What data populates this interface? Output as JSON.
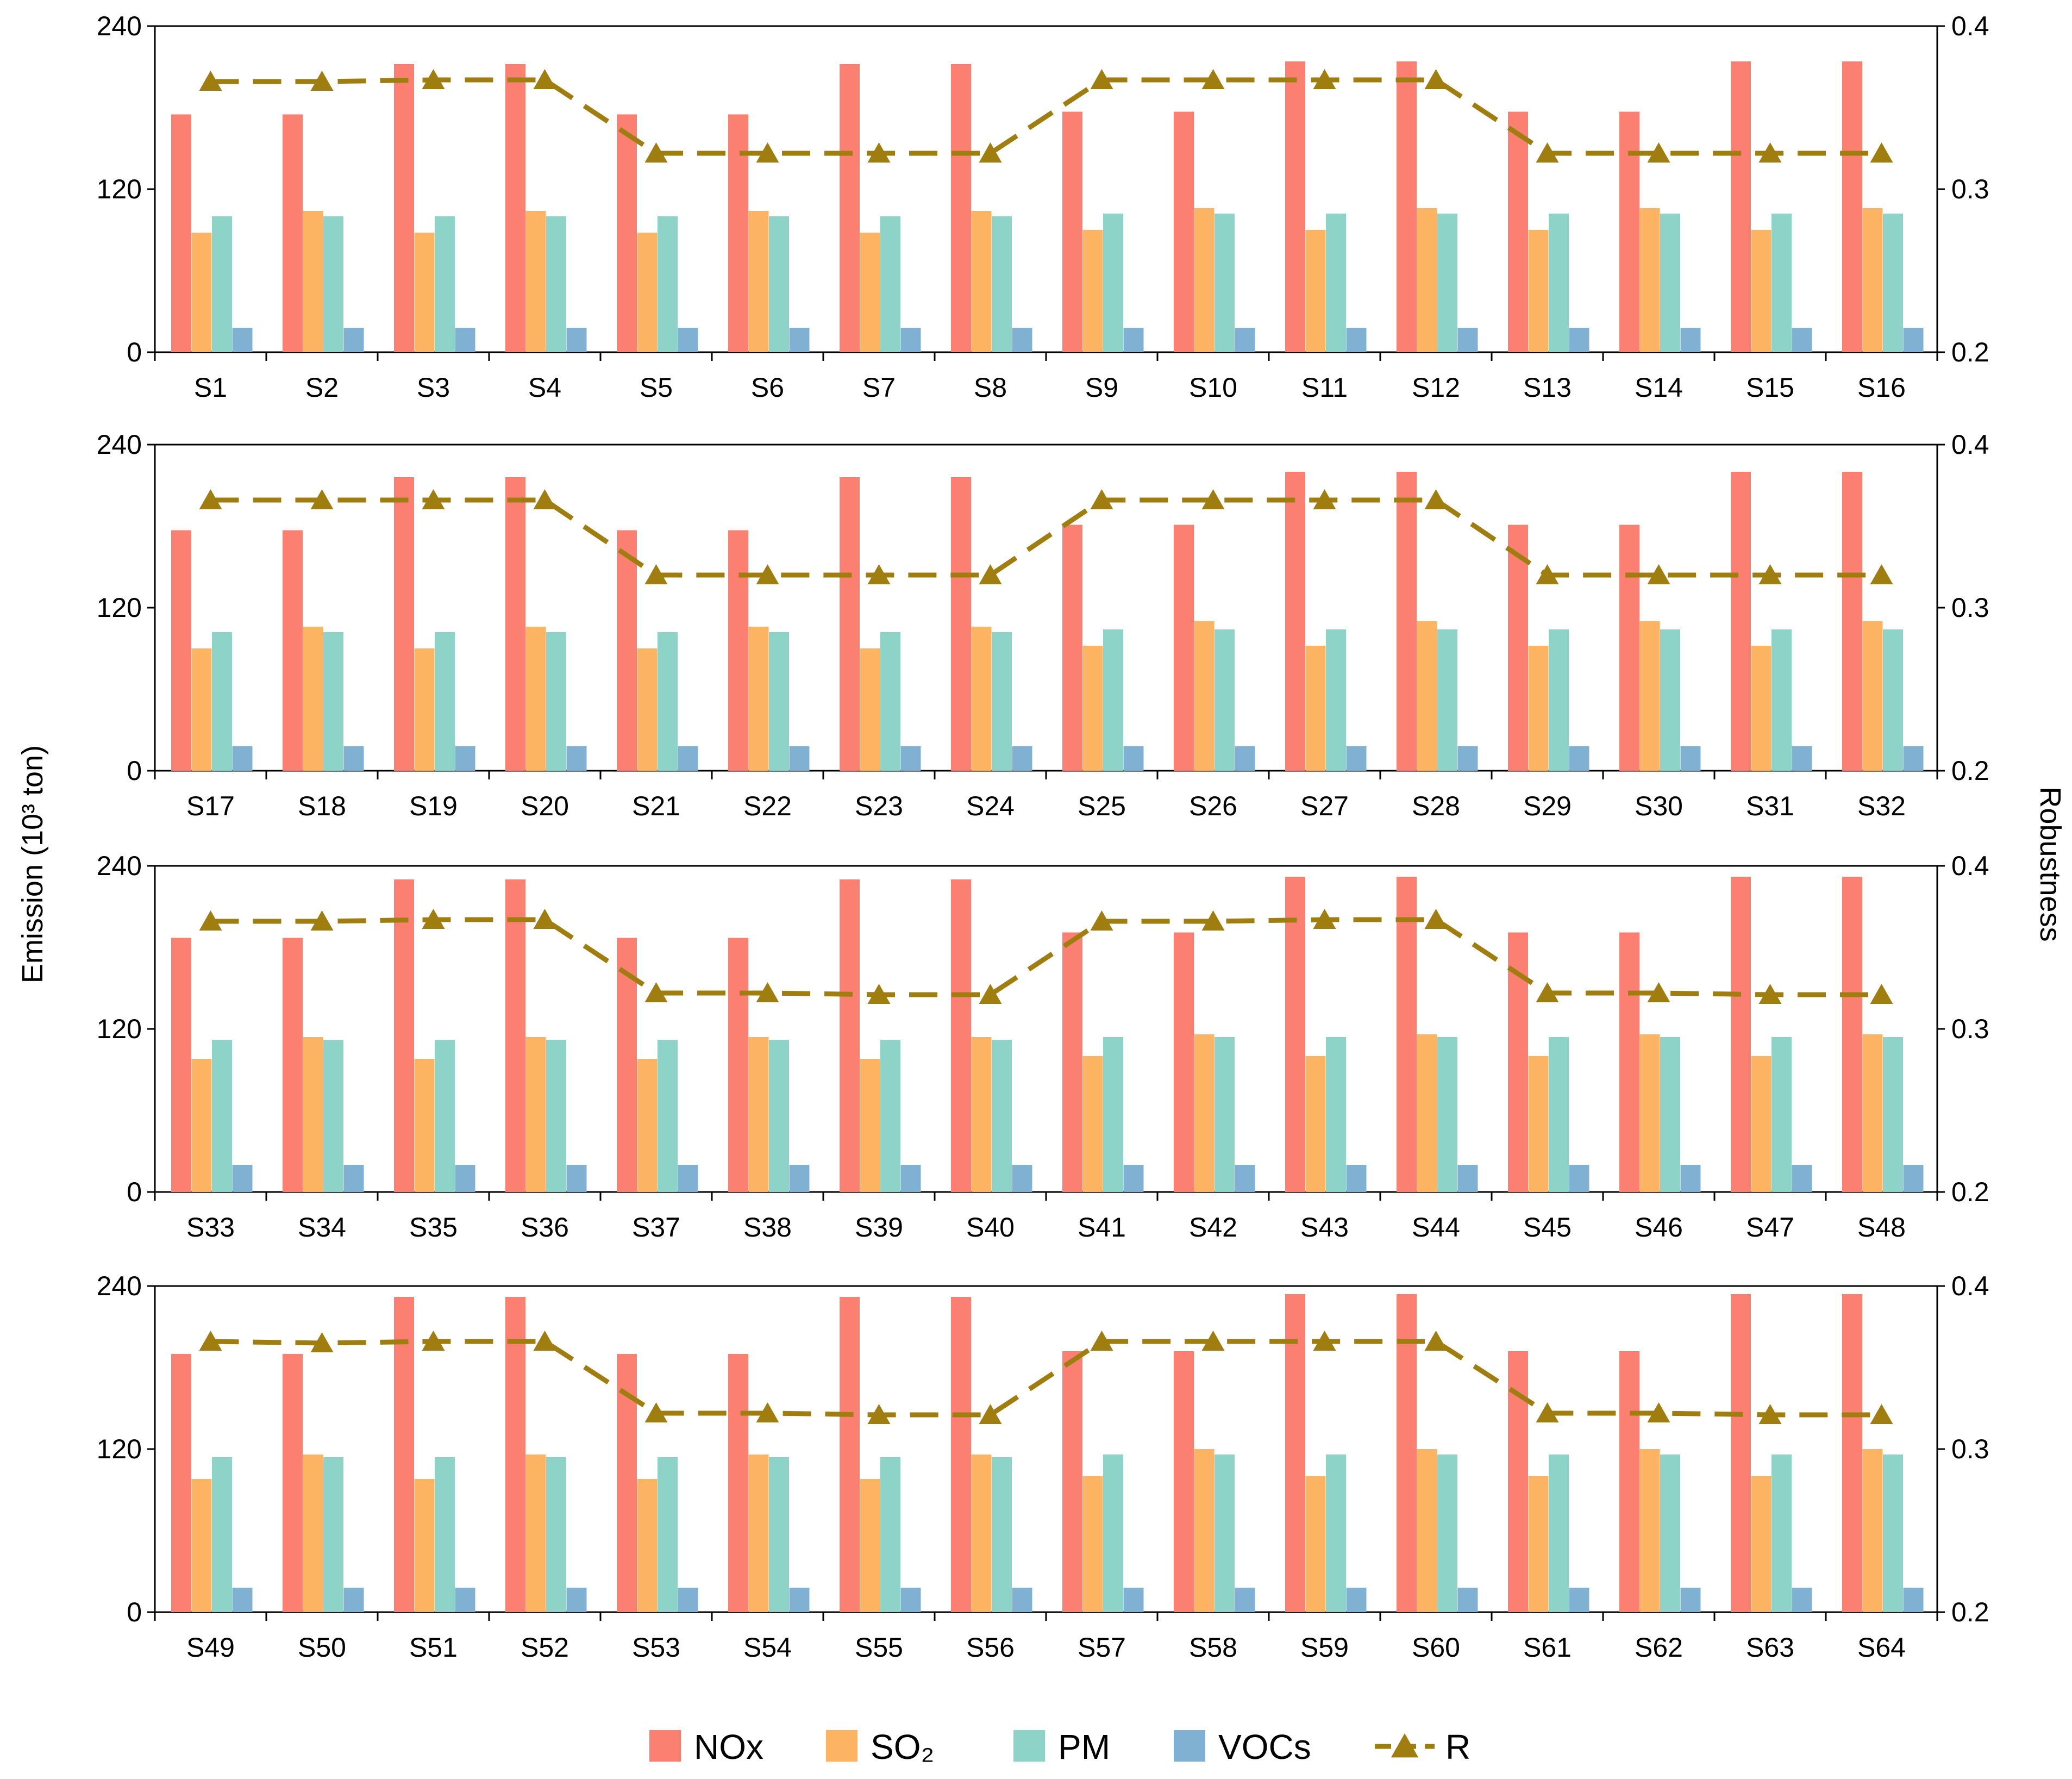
{
  "chart_data": {
    "type": "bar+line",
    "title": "",
    "ylabel": "Emission  (10³ ton)",
    "ylabel_right": "Robustness",
    "ylim": [
      0,
      240
    ],
    "ylim_right": [
      0.2,
      0.4
    ],
    "yticks": [
      "0",
      "120",
      "240"
    ],
    "yticks_right": [
      "0.2",
      "0.3",
      "0.4"
    ],
    "colors": {
      "NOx": "#fb8072",
      "SO2": "#fdb462",
      "PM": "#8dd3c7",
      "VOCs": "#80b1d3",
      "R": "#a07d0f"
    },
    "legend": [
      {
        "key": "NOx",
        "label": "NOx"
      },
      {
        "key": "SO2",
        "label": "SO₂"
      },
      {
        "key": "PM",
        "label": "PM"
      },
      {
        "key": "VOCs",
        "label": "VOCs"
      },
      {
        "key": "R",
        "label": "R"
      }
    ],
    "panels": [
      {
        "categories": [
          "S1",
          "S2",
          "S3",
          "S4",
          "S5",
          "S6",
          "S7",
          "S8",
          "S9",
          "S10",
          "S11",
          "S12",
          "S13",
          "S14",
          "S15",
          "S16"
        ],
        "series": [
          {
            "name": "NOx",
            "values": [
              175,
              175,
              212,
              212,
              175,
              175,
              212,
              212,
              177,
              177,
              214,
              214,
              177,
              177,
              214,
              214
            ]
          },
          {
            "name": "SO2",
            "values": [
              88,
              104,
              88,
              104,
              88,
              104,
              88,
              104,
              90,
              106,
              90,
              106,
              90,
              106,
              90,
              106
            ]
          },
          {
            "name": "PM",
            "values": [
              100,
              100,
              100,
              100,
              100,
              100,
              100,
              100,
              102,
              102,
              102,
              102,
              102,
              102,
              102,
              102
            ]
          },
          {
            "name": "VOCs",
            "values": [
              18,
              18,
              18,
              18,
              18,
              18,
              18,
              18,
              18,
              18,
              18,
              18,
              18,
              18,
              18,
              18
            ]
          },
          {
            "name": "R",
            "values": [
              0.366,
              0.366,
              0.367,
              0.367,
              0.322,
              0.322,
              0.322,
              0.322,
              0.367,
              0.367,
              0.367,
              0.367,
              0.322,
              0.322,
              0.322,
              0.322
            ]
          }
        ]
      },
      {
        "categories": [
          "S17",
          "S18",
          "S19",
          "S20",
          "S21",
          "S22",
          "S23",
          "S24",
          "S25",
          "S26",
          "S27",
          "S28",
          "S29",
          "S30",
          "S31",
          "S32"
        ],
        "series": [
          {
            "name": "NOx",
            "values": [
              177,
              177,
              216,
              216,
              177,
              177,
              216,
              216,
              181,
              181,
              220,
              220,
              181,
              181,
              220,
              220
            ]
          },
          {
            "name": "SO2",
            "values": [
              90,
              106,
              90,
              106,
              90,
              106,
              90,
              106,
              92,
              110,
              92,
              110,
              92,
              110,
              92,
              110
            ]
          },
          {
            "name": "PM",
            "values": [
              102,
              102,
              102,
              102,
              102,
              102,
              102,
              102,
              104,
              104,
              104,
              104,
              104,
              104,
              104,
              104
            ]
          },
          {
            "name": "VOCs",
            "values": [
              18,
              18,
              18,
              18,
              18,
              18,
              18,
              18,
              18,
              18,
              18,
              18,
              18,
              18,
              18,
              18
            ]
          },
          {
            "name": "R",
            "values": [
              0.366,
              0.366,
              0.366,
              0.366,
              0.32,
              0.32,
              0.32,
              0.32,
              0.366,
              0.366,
              0.366,
              0.366,
              0.32,
              0.32,
              0.32,
              0.32
            ]
          }
        ]
      },
      {
        "categories": [
          "S33",
          "S34",
          "S35",
          "S36",
          "S37",
          "S38",
          "S39",
          "S40",
          "S41",
          "S42",
          "S43",
          "S44",
          "S45",
          "S46",
          "S47",
          "S48"
        ],
        "series": [
          {
            "name": "NOx",
            "values": [
              187,
              187,
              230,
              230,
              187,
              187,
              230,
              230,
              191,
              191,
              232,
              232,
              191,
              191,
              232,
              232
            ]
          },
          {
            "name": "SO2",
            "values": [
              98,
              114,
              98,
              114,
              98,
              114,
              98,
              114,
              100,
              116,
              100,
              116,
              100,
              116,
              100,
              116
            ]
          },
          {
            "name": "PM",
            "values": [
              112,
              112,
              112,
              112,
              112,
              112,
              112,
              112,
              114,
              114,
              114,
              114,
              114,
              114,
              114,
              114
            ]
          },
          {
            "name": "VOCs",
            "values": [
              20,
              20,
              20,
              20,
              20,
              20,
              20,
              20,
              20,
              20,
              20,
              20,
              20,
              20,
              20,
              20
            ]
          },
          {
            "name": "R",
            "values": [
              0.366,
              0.366,
              0.367,
              0.367,
              0.322,
              0.322,
              0.321,
              0.321,
              0.366,
              0.366,
              0.367,
              0.367,
              0.322,
              0.322,
              0.321,
              0.321
            ]
          }
        ]
      },
      {
        "categories": [
          "S49",
          "S50",
          "S51",
          "S52",
          "S53",
          "S54",
          "S55",
          "S56",
          "S57",
          "S58",
          "S59",
          "S60",
          "S61",
          "S62",
          "S63",
          "S64"
        ],
        "series": [
          {
            "name": "NOx",
            "values": [
              190,
              190,
              232,
              232,
              190,
              190,
              232,
              232,
              192,
              192,
              234,
              234,
              192,
              192,
              234,
              234
            ]
          },
          {
            "name": "SO2",
            "values": [
              98,
              116,
              98,
              116,
              98,
              116,
              98,
              116,
              100,
              120,
              100,
              120,
              100,
              120,
              100,
              120
            ]
          },
          {
            "name": "PM",
            "values": [
              114,
              114,
              114,
              114,
              114,
              114,
              114,
              114,
              116,
              116,
              116,
              116,
              116,
              116,
              116,
              116
            ]
          },
          {
            "name": "VOCs",
            "values": [
              18,
              18,
              18,
              18,
              18,
              18,
              18,
              18,
              18,
              18,
              18,
              18,
              18,
              18,
              18,
              18
            ]
          },
          {
            "name": "R",
            "values": [
              0.366,
              0.365,
              0.366,
              0.366,
              0.322,
              0.322,
              0.321,
              0.321,
              0.366,
              0.366,
              0.366,
              0.366,
              0.322,
              0.322,
              0.321,
              0.321
            ]
          }
        ]
      }
    ]
  }
}
